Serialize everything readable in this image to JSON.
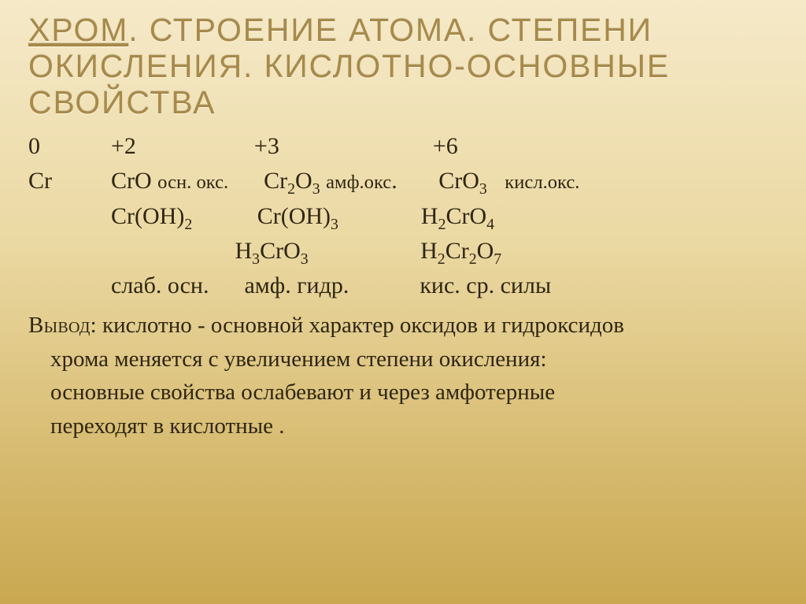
{
  "title": {
    "line1_a": "ХРОМ",
    "line1_b": ". СТРОЕНИЕ АТОМА. СТЕПЕНИ",
    "line2": "ОКИСЛЕНИЯ. КИСЛОТНО-ОСНОВНЫЕ",
    "line3": "СВОЙСТВА",
    "color": "#a78a4a",
    "fontsize": 41
  },
  "colors": {
    "bg_top": "#f5e9c8",
    "bg_mid": "#ebd9a3",
    "bg_low": "#d4b76a",
    "bg_bot": "#c9a850",
    "text": "#2f2610",
    "title_shadow_light": "#fff6e0"
  },
  "content": {
    "fontsize": 30,
    "line_height": 1.48
  },
  "ox": {
    "v0": "0",
    "v2": "+2",
    "v3": "+3",
    "v6": "+6"
  },
  "r2": {
    "a": "Cr",
    "b_pre": "CrO ",
    "b_note": "осн. окс.",
    "c_pre": "Cr",
    "c_s1": "2",
    "c_mid": "O",
    "c_s2": "3",
    "c_post": " ",
    "c_note": "амф.окс",
    "c_dot": ".",
    "d_pre": "CrO",
    "d_s": "3",
    "d_sp": "   ",
    "d_note": "кисл.окс."
  },
  "r3": {
    "a_pre": "Cr(OH)",
    "a_s": "2",
    "b_pre": "Cr(OH)",
    "b_s": "3",
    "c_pre": "H",
    "c_s1": "2",
    "c_mid": "CrO",
    "c_s2": "4"
  },
  "r4": {
    "a_pre": "H",
    "a_s1": "3",
    "a_mid": "CrO",
    "a_s2": "3",
    "b_pre": "H",
    "b_s1": "2",
    "b_mid": "Cr",
    "b_s2": "2",
    "b_mid2": "O",
    "b_s3": "7"
  },
  "r5": {
    "a": "слаб. осн.",
    "b": "амф. гидр.",
    "c": "кис. ср. силы"
  },
  "concl": {
    "label": "Вывод",
    "t1": ": кислотно - основной  характер оксидов и гидроксидов",
    "t2": "хрома   меняется с увеличением степени окисления:",
    "t3": "основные свойства  ослабевают и через амфотерные",
    "t4": "переходят в кислотные ."
  }
}
